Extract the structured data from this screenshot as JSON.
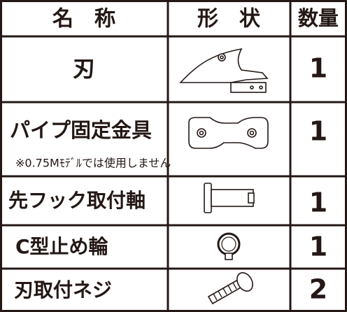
{
  "table": {
    "header": [
      "名　称",
      "形　状",
      "数量"
    ],
    "rows": [
      {
        "name": "刃",
        "quantity": 1
      },
      {
        "name": "パイプ固定金具",
        "note": "※0.75Mﾓﾃﾞﾙでは使用しません",
        "quantity": 1
      },
      {
        "name": "先フック取付軸",
        "quantity": 1
      },
      {
        "name": "C型止め輪",
        "quantity": 1
      },
      {
        "name": "刃取付ネジ",
        "quantity": 2
      }
    ]
  }
}
